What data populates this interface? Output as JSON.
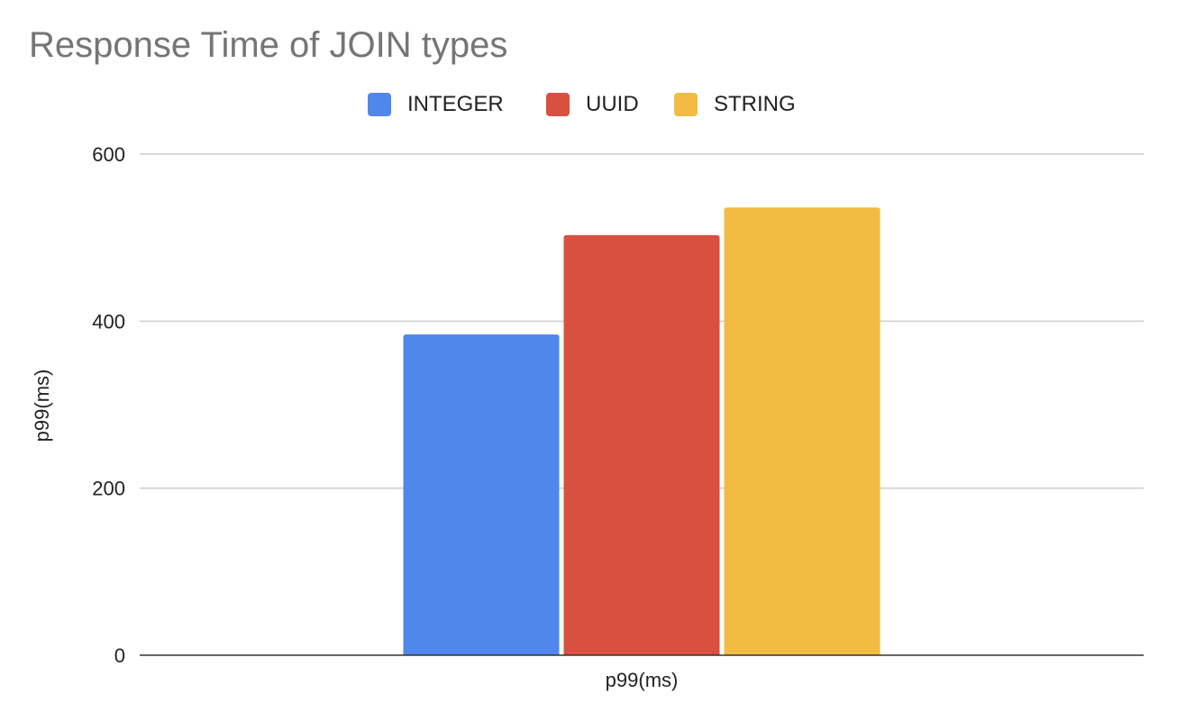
{
  "chart_data": {
    "type": "bar",
    "title": "Response Time of JOIN types",
    "categories": [
      "p99(ms)"
    ],
    "series": [
      {
        "name": "INTEGER",
        "values": [
          384
        ],
        "color": "#4f87eb"
      },
      {
        "name": "UUID",
        "values": [
          503
        ],
        "color": "#d95040"
      },
      {
        "name": "STRING",
        "values": [
          536
        ],
        "color": "#f2bc42"
      }
    ],
    "xlabel": "p99(ms)",
    "ylabel": "p99(ms)",
    "ylim": [
      0,
      600
    ],
    "yticks": [
      "0",
      "200",
      "400",
      "600"
    ],
    "grid": true,
    "legend_position": "top-center"
  }
}
